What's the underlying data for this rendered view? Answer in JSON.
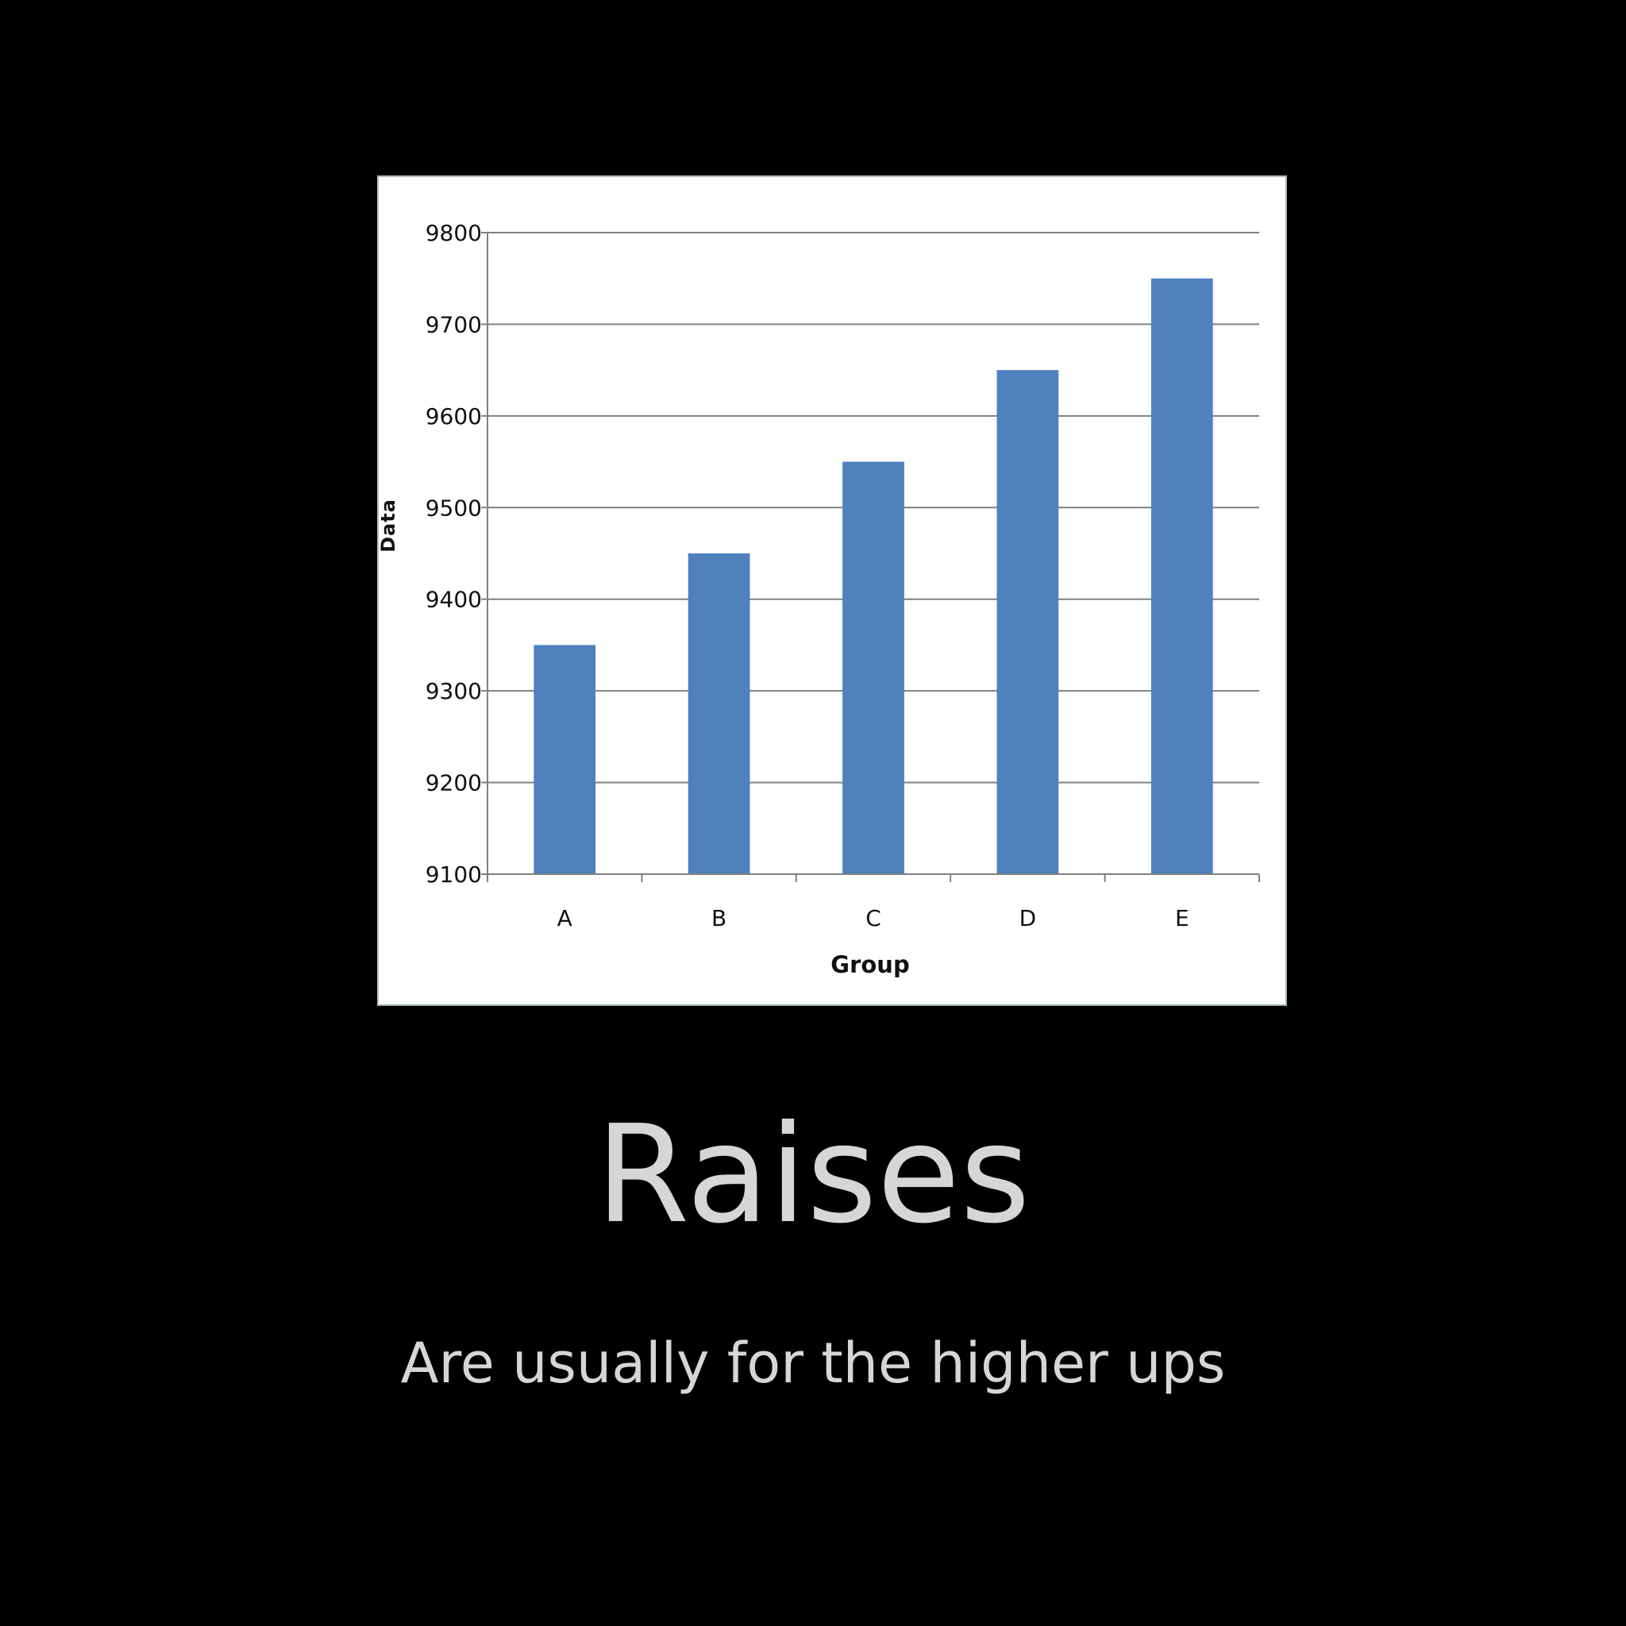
{
  "colors": {
    "background": "#000000",
    "bar": "#4f81bd",
    "gridline": "#808080",
    "caption": "#d6d6d6"
  },
  "chart_data": {
    "type": "bar",
    "categories": [
      "A",
      "B",
      "C",
      "D",
      "E"
    ],
    "values": [
      9350,
      9450,
      9550,
      9650,
      9750
    ],
    "xlabel": "Group",
    "ylabel": "Data",
    "ylim": [
      9100,
      9800
    ],
    "yticks": [
      9100,
      9200,
      9300,
      9400,
      9500,
      9600,
      9700,
      9800
    ],
    "grid": true,
    "legend": "none"
  },
  "caption": {
    "title": "Raises",
    "subtitle": "Are usually for the higher ups"
  }
}
